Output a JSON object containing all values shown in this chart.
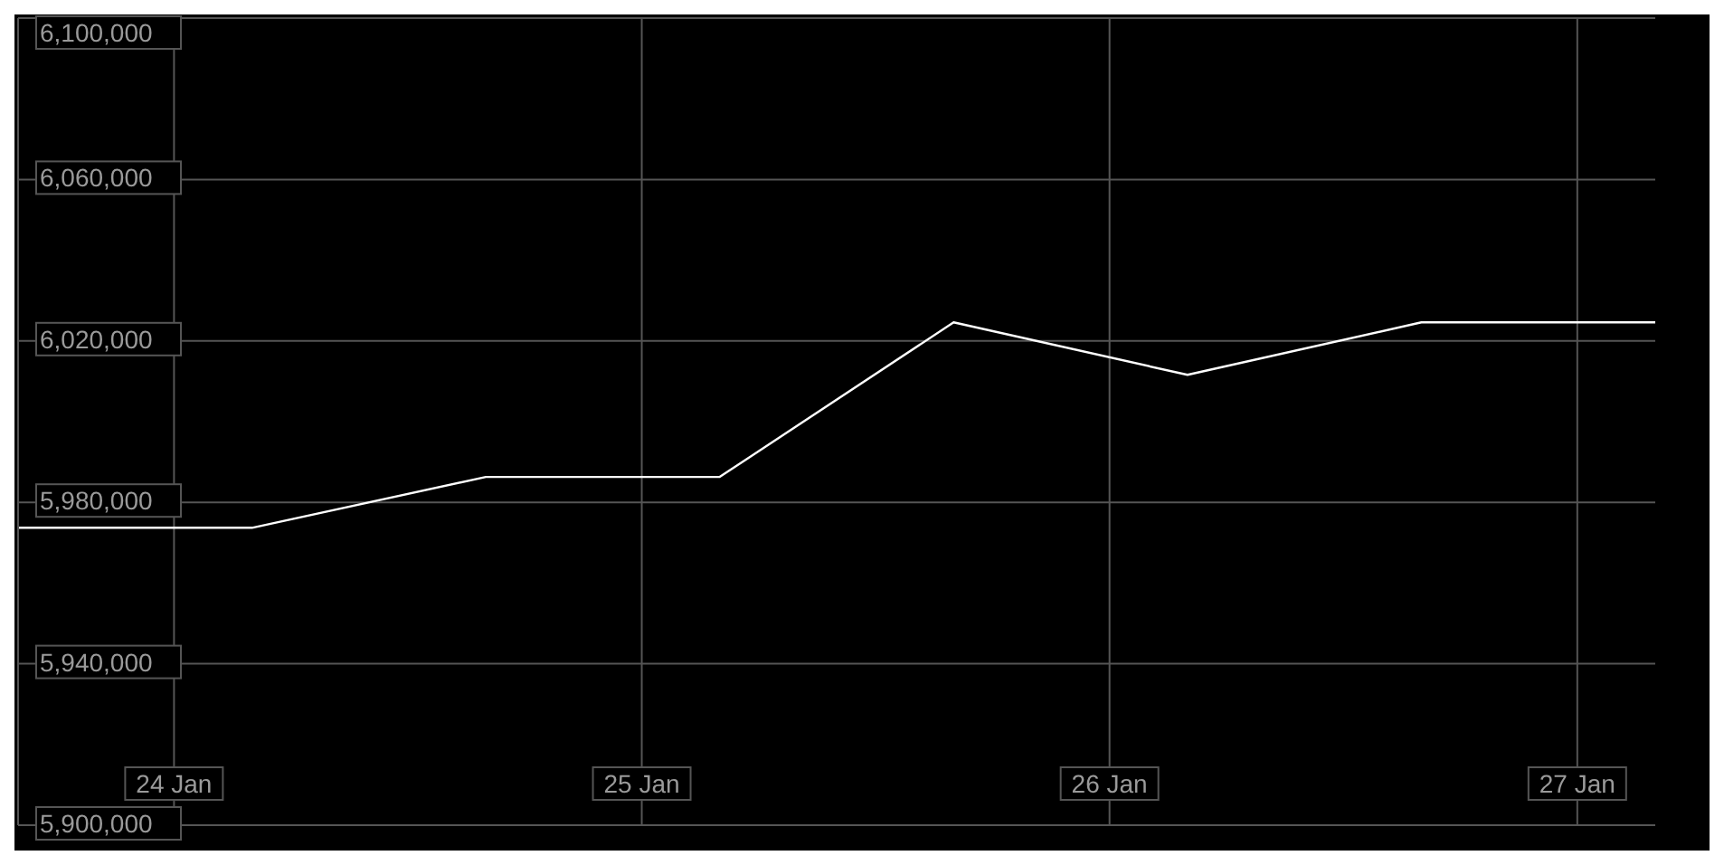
{
  "chart_data": {
    "type": "line",
    "x": [
      "--01-23T16:00",
      "--01-24T04:00",
      "--01-24T16:00",
      "--01-25T04:00",
      "--01-25T16:00",
      "--01-26T04:00",
      "--01-26T16:00",
      "--01-27T04:00"
    ],
    "series": [
      {
        "color": "#ffffff",
        "values": [
          5973700,
          5973700,
          5986300,
          5986300,
          6024600,
          6011600,
          6024600,
          6024600
        ]
      }
    ],
    "xlim": [
      "--01-23T16:00",
      "--01-27T04:00"
    ],
    "xticks": [
      {
        "value": "--01-24",
        "label": "24 Jan"
      },
      {
        "value": "--01-25",
        "label": "25 Jan"
      },
      {
        "value": "--01-26",
        "label": "26 Jan"
      },
      {
        "value": "--01-27",
        "label": "27 Jan"
      }
    ],
    "ylim": [
      5900000,
      6100000
    ],
    "yticks": [
      {
        "value": 5900000,
        "label": "5,900,000"
      },
      {
        "value": 5940000,
        "label": "5,940,000"
      },
      {
        "value": 5980000,
        "label": "5,980,000"
      },
      {
        "value": 6020000,
        "label": "6,020,000"
      },
      {
        "value": 6060000,
        "label": "6,060,000"
      },
      {
        "value": 6100000,
        "label": "6,100,000"
      }
    ],
    "grid": true,
    "marker": "none",
    "line_style": "solid"
  }
}
